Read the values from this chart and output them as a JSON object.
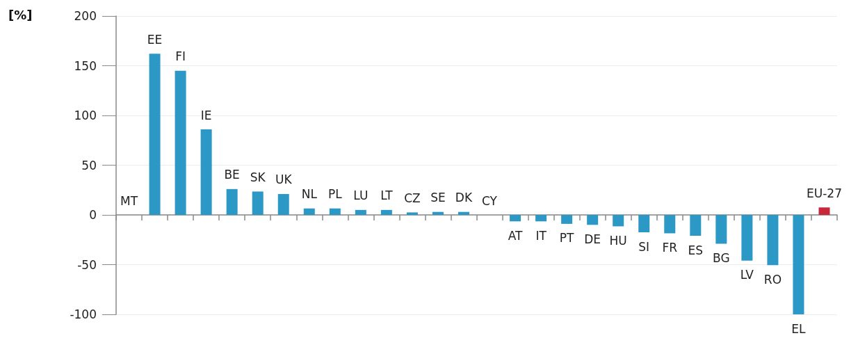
{
  "chart_data": {
    "type": "bar",
    "ylabel": "[%]",
    "categories": [
      "MT",
      "EE",
      "FI",
      "IE",
      "BE",
      "SK",
      "UK",
      "NL",
      "PL",
      "LU",
      "LT",
      "CZ",
      "SE",
      "DK",
      "CY",
      "AT",
      "IT",
      "PT",
      "DE",
      "HU",
      "SI",
      "FR",
      "ES",
      "BG",
      "LV",
      "RO",
      "EL",
      "EU-27"
    ],
    "values": [
      0,
      162,
      145,
      86,
      26,
      23.5,
      21,
      6.5,
      6.5,
      5,
      5,
      2.5,
      3,
      3,
      0,
      -6.5,
      -6.5,
      -9,
      -10,
      -11.5,
      -17.5,
      -18.5,
      -21,
      -29,
      -46,
      -50.5,
      -100,
      7.5
    ],
    "colors": [
      "#2b98c6",
      "#2b98c6",
      "#2b98c6",
      "#2b98c6",
      "#2b98c6",
      "#2b98c6",
      "#2b98c6",
      "#2b98c6",
      "#2b98c6",
      "#2b98c6",
      "#2b98c6",
      "#2b98c6",
      "#2b98c6",
      "#2b98c6",
      "#2b98c6",
      "#2b98c6",
      "#2b98c6",
      "#2b98c6",
      "#2b98c6",
      "#2b98c6",
      "#2b98c6",
      "#2b98c6",
      "#2b98c6",
      "#2b98c6",
      "#2b98c6",
      "#2b98c6",
      "#2b98c6",
      "#c8283c"
    ],
    "ylim": [
      -100,
      200
    ],
    "yticks": [
      -100,
      -50,
      0,
      50,
      100,
      150,
      200
    ],
    "grid": "y"
  }
}
